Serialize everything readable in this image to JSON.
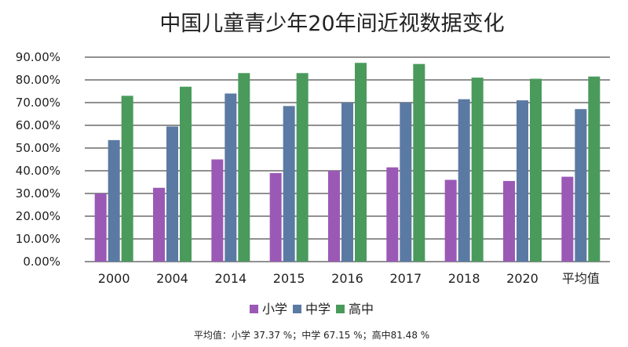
{
  "chart_data": {
    "type": "bar",
    "title": "中国儿童青少年20年间近视数据变化",
    "categories": [
      "2000",
      "2004",
      "2014",
      "2015",
      "2016",
      "2017",
      "2018",
      "2020",
      "平均值"
    ],
    "series": [
      {
        "name": "小学",
        "color": "#9b59b6",
        "values": [
          30.0,
          32.5,
          45.0,
          39.0,
          40.0,
          41.5,
          36.0,
          35.5,
          37.37
        ]
      },
      {
        "name": "中学",
        "color": "#5b7aa3",
        "values": [
          53.5,
          59.5,
          74.0,
          68.5,
          70.0,
          70.0,
          71.5,
          71.0,
          67.15
        ]
      },
      {
        "name": "高中",
        "color": "#4a9a5c",
        "values": [
          73.0,
          77.0,
          83.0,
          83.0,
          87.5,
          87.0,
          81.0,
          80.5,
          81.48
        ]
      }
    ],
    "ylim": [
      0,
      90
    ],
    "yticks": [
      "0.00%",
      "10.00%",
      "20.00%",
      "30.00%",
      "40.00%",
      "50.00%",
      "60.00%",
      "70.00%",
      "80.00%",
      "90.00%"
    ],
    "xlabel": "",
    "ylabel": "",
    "legend_position": "bottom",
    "grid": true
  },
  "footnote": "平均值：小学 37.37 %；中学 67.15 %；高中81.48 %"
}
